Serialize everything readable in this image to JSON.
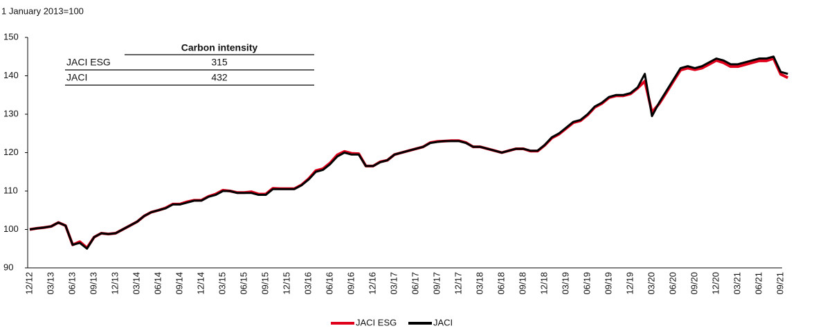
{
  "chart_data": {
    "type": "line",
    "subtitle": "1 January 2013=100",
    "categories": [
      "12/12",
      null,
      null,
      "03/13",
      null,
      null,
      "06/13",
      null,
      null,
      "09/13",
      null,
      null,
      "12/13",
      null,
      null,
      "03/14",
      null,
      null,
      "06/14",
      null,
      null,
      "09/14",
      null,
      null,
      "12/14",
      null,
      null,
      "03/15",
      null,
      null,
      "06/15",
      null,
      null,
      "09/15",
      null,
      null,
      "12/15",
      null,
      null,
      "03/16",
      null,
      null,
      "06/16",
      null,
      null,
      "09/16",
      null,
      null,
      "12/16",
      null,
      null,
      "03/17",
      null,
      null,
      "06/17",
      null,
      null,
      "09/17",
      null,
      null,
      "12/17",
      null,
      null,
      "03/18",
      null,
      null,
      "06/18",
      null,
      null,
      "09/18",
      null,
      null,
      "12/18",
      null,
      null,
      "03/19",
      null,
      null,
      "06/19",
      null,
      null,
      "09/19",
      null,
      null,
      "12/19",
      null,
      null,
      "03/20",
      null,
      null,
      "06/20",
      null,
      null,
      "09/20",
      null,
      null,
      "12/20",
      null,
      null,
      "03/21",
      null,
      null,
      "06/21",
      null,
      null,
      "09/21",
      null
    ],
    "series": [
      {
        "name": "JACI ESG",
        "color": "#e0001b",
        "values": [
          100,
          100.3,
          100.5,
          100.8,
          101.8,
          101,
          96,
          96.8,
          95.2,
          98,
          99,
          98.8,
          99,
          100,
          101,
          102,
          103.5,
          104.5,
          105,
          105.6,
          106.6,
          106.6,
          107.2,
          107.6,
          107.6,
          108.6,
          109.2,
          110.2,
          110,
          109.6,
          109.6,
          109.8,
          109.2,
          109.2,
          110.7,
          110.6,
          110.6,
          110.6,
          111.6,
          113.2,
          115.3,
          115.8,
          117.3,
          119.4,
          120.3,
          119.8,
          119.7,
          116.5,
          116.5,
          117.6,
          118,
          119.5,
          120,
          120.5,
          121,
          121.5,
          122.6,
          122.9,
          123,
          123.1,
          123.1,
          122.6,
          121.5,
          121.5,
          121,
          120.5,
          120,
          120.5,
          121,
          121,
          120.4,
          120.4,
          121.9,
          123.8,
          124.8,
          126.3,
          127.8,
          128.3,
          129.8,
          131.8,
          132.8,
          134.3,
          134.8,
          134.8,
          135.3,
          136.8,
          138.6,
          130.5,
          132.7,
          135.6,
          138.6,
          141.5,
          142,
          141.6,
          142,
          143,
          144,
          143.4,
          142.4,
          142.4,
          142.9,
          143.4,
          143.9,
          143.9,
          144.5,
          140.4,
          139.5
        ]
      },
      {
        "name": "JACI",
        "color": "#000000",
        "values": [
          100,
          100.3,
          100.5,
          100.8,
          101.8,
          101,
          96,
          96.5,
          95,
          98,
          99,
          98.8,
          99,
          100,
          101,
          102,
          103.5,
          104.5,
          105,
          105.5,
          106.5,
          106.5,
          107,
          107.5,
          107.5,
          108.5,
          109,
          110,
          110,
          109.5,
          109.5,
          109.5,
          109,
          109,
          110.5,
          110.5,
          110.5,
          110.5,
          111.5,
          113,
          115,
          115.5,
          117,
          119,
          120,
          119.5,
          119.5,
          116.5,
          116.5,
          117.5,
          118,
          119.5,
          120,
          120.5,
          121,
          121.5,
          122.5,
          122.8,
          123,
          123,
          123,
          122.5,
          121.5,
          121.5,
          121,
          120.5,
          120,
          120.5,
          121,
          121,
          120.5,
          120.5,
          122,
          124,
          125,
          126.5,
          128,
          128.5,
          130,
          132,
          133,
          134.5,
          135,
          135,
          135.5,
          137,
          140.5,
          129.5,
          133,
          136,
          139,
          142,
          142.5,
          142,
          142.5,
          143.5,
          144.5,
          144,
          143,
          143,
          143.5,
          144,
          144.5,
          144.5,
          145,
          141,
          140.5
        ]
      }
    ],
    "ylim": [
      90,
      150
    ],
    "yticks": [
      90,
      100,
      110,
      120,
      130,
      140,
      150
    ],
    "table": {
      "header": "Carbon intensity",
      "rows": [
        [
          "JACI ESG",
          315
        ],
        [
          "JACI",
          432
        ]
      ]
    }
  }
}
